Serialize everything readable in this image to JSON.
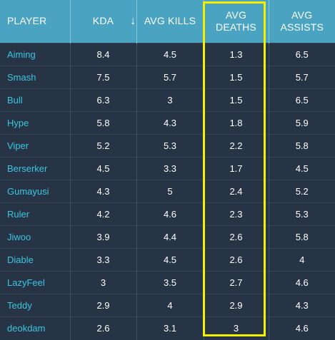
{
  "table": {
    "headers": {
      "player": "PLAYER",
      "kda": "KDA",
      "avg_kills": "AVG KILLS",
      "avg_deaths_line1": "AVG",
      "avg_deaths_line2": "DEATHS",
      "avg_assists_line1": "AVG",
      "avg_assists_line2": "ASSISTS"
    },
    "sort_icon": "arrow-down-icon",
    "sort_glyph": "↓",
    "rows": [
      {
        "player": "Aiming",
        "kda": "8.4",
        "kills": "4.5",
        "deaths": "1.3",
        "assists": "6.5"
      },
      {
        "player": "Smash",
        "kda": "7.5",
        "kills": "5.7",
        "deaths": "1.5",
        "assists": "5.7"
      },
      {
        "player": "Bull",
        "kda": "6.3",
        "kills": "3",
        "deaths": "1.5",
        "assists": "6.5"
      },
      {
        "player": "Hype",
        "kda": "5.8",
        "kills": "4.3",
        "deaths": "1.8",
        "assists": "5.9"
      },
      {
        "player": "Viper",
        "kda": "5.2",
        "kills": "5.3",
        "deaths": "2.2",
        "assists": "5.8"
      },
      {
        "player": "Berserker",
        "kda": "4.5",
        "kills": "3.3",
        "deaths": "1.7",
        "assists": "4.5"
      },
      {
        "player": "Gumayusi",
        "kda": "4.3",
        "kills": "5",
        "deaths": "2.4",
        "assists": "5.2"
      },
      {
        "player": "Ruler",
        "kda": "4.2",
        "kills": "4.6",
        "deaths": "2.3",
        "assists": "5.3"
      },
      {
        "player": "Jiwoo",
        "kda": "3.9",
        "kills": "4.4",
        "deaths": "2.6",
        "assists": "5.8"
      },
      {
        "player": "Diable",
        "kda": "3.3",
        "kills": "4.5",
        "deaths": "2.6",
        "assists": "4"
      },
      {
        "player": "LazyFeel",
        "kda": "3",
        "kills": "3.5",
        "deaths": "2.7",
        "assists": "4.6"
      },
      {
        "player": "Teddy",
        "kda": "2.9",
        "kills": "4",
        "deaths": "2.9",
        "assists": "4.3"
      },
      {
        "player": "deokdam",
        "kda": "2.6",
        "kills": "3.1",
        "deaths": "3",
        "assists": "4.6"
      }
    ]
  },
  "colors": {
    "header_bg": "#4aa3c1",
    "body_bg": "#263445",
    "player_name": "#3cc6e0",
    "highlight": "#f5f000"
  }
}
